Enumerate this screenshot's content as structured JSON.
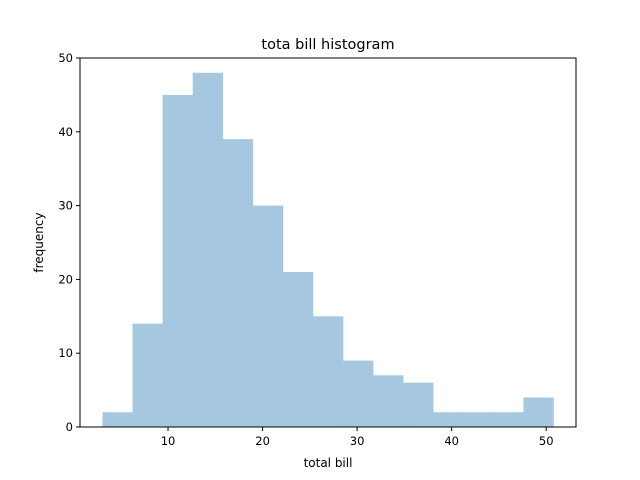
{
  "chart_data": {
    "type": "bar",
    "title": "tota bill histogram",
    "xlabel": "total bill",
    "ylabel": "frequency",
    "bin_edges": [
      3.07,
      6.25,
      9.43,
      12.61,
      15.79,
      18.97,
      22.15,
      25.33,
      28.51,
      31.69,
      34.87,
      38.05,
      41.23,
      44.41,
      47.59,
      50.77
    ],
    "values": [
      2,
      14,
      45,
      48,
      39,
      30,
      21,
      15,
      9,
      7,
      6,
      2,
      2,
      2,
      4
    ],
    "xlim": [
      0.69,
      53.15
    ],
    "ylim": [
      0,
      50
    ],
    "xticks": [
      10,
      20,
      30,
      40,
      50
    ],
    "yticks": [
      0,
      10,
      20,
      30,
      40,
      50
    ],
    "xtick_labels": [
      "10",
      "20",
      "30",
      "40",
      "50"
    ],
    "ytick_labels": [
      "0",
      "10",
      "20",
      "30",
      "40",
      "50"
    ],
    "grid": false,
    "legend": "none",
    "bar_color": "#a5c7e0"
  }
}
